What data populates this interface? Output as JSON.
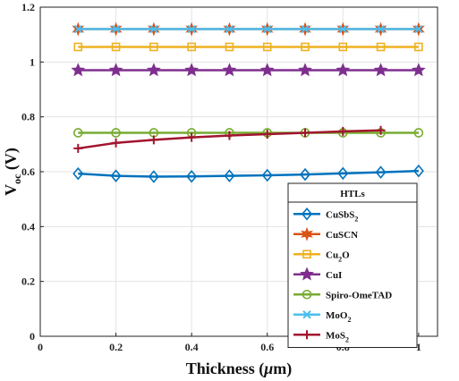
{
  "chart_data": {
    "type": "line",
    "xlabel": "Thickness (μm)",
    "ylabel": "Voc (V)",
    "xlim": [
      0,
      1.05
    ],
    "ylim": [
      0,
      1.2
    ],
    "xticks": [
      "0",
      "0.2",
      "0.4",
      "0.6",
      "0.8",
      "1"
    ],
    "yticks": [
      "0",
      "0.2",
      "0.4",
      "0.6",
      "0.8",
      "1",
      "1.2"
    ],
    "grid": true,
    "legend_title": "HTLs",
    "legend_position": "bottom-right",
    "series": [
      {
        "name": "CuSbS2",
        "label_main": "CuSbS",
        "label_sub": "2",
        "color": "#0072BD",
        "marker": "diamond",
        "x": [
          0.1,
          0.2,
          0.3,
          0.4,
          0.5,
          0.6,
          0.7,
          0.8,
          0.9,
          1.0
        ],
        "values": [
          0.593,
          0.585,
          0.582,
          0.583,
          0.585,
          0.587,
          0.59,
          0.594,
          0.598,
          0.603
        ]
      },
      {
        "name": "CuSCN",
        "label_main": "CuSCN",
        "label_sub": "",
        "color": "#D95319",
        "marker": "hexagram",
        "x": [
          0.1,
          0.2,
          0.3,
          0.4,
          0.5,
          0.6,
          0.7,
          0.8,
          0.9,
          1.0
        ],
        "values": [
          1.12,
          1.12,
          1.12,
          1.12,
          1.12,
          1.12,
          1.12,
          1.12,
          1.12,
          1.12
        ]
      },
      {
        "name": "Cu2O",
        "label_main": "Cu",
        "label_sub": "2",
        "label_tail": "O",
        "color": "#EDB120",
        "marker": "square",
        "x": [
          0.1,
          0.2,
          0.3,
          0.4,
          0.5,
          0.6,
          0.7,
          0.8,
          0.9,
          1.0
        ],
        "values": [
          1.055,
          1.055,
          1.055,
          1.055,
          1.055,
          1.055,
          1.055,
          1.055,
          1.055,
          1.055
        ]
      },
      {
        "name": "CuI",
        "label_main": "CuI",
        "label_sub": "",
        "color": "#7E2F8E",
        "marker": "pentagram",
        "x": [
          0.1,
          0.2,
          0.3,
          0.4,
          0.5,
          0.6,
          0.7,
          0.8,
          0.9,
          1.0
        ],
        "values": [
          0.97,
          0.97,
          0.97,
          0.97,
          0.97,
          0.97,
          0.97,
          0.97,
          0.97,
          0.97
        ]
      },
      {
        "name": "Spiro-OmeTAD",
        "label_main": "Spiro-OmeTAD",
        "label_sub": "",
        "color": "#77AC30",
        "marker": "circle",
        "x": [
          0.1,
          0.2,
          0.3,
          0.4,
          0.5,
          0.6,
          0.7,
          0.8,
          0.9,
          1.0
        ],
        "values": [
          0.742,
          0.742,
          0.742,
          0.742,
          0.742,
          0.742,
          0.742,
          0.742,
          0.742,
          0.742
        ]
      },
      {
        "name": "MoO2",
        "label_main": "MoO",
        "label_sub": "2",
        "color": "#4DBEEE",
        "marker": "x",
        "x": [
          0.1,
          0.2,
          0.3,
          0.4,
          0.5,
          0.6,
          0.7,
          0.8,
          0.9,
          1.0
        ],
        "values": [
          1.12,
          1.12,
          1.12,
          1.12,
          1.12,
          1.12,
          1.12,
          1.12,
          1.12,
          1.12
        ]
      },
      {
        "name": "MoS2",
        "label_main": "MoS",
        "label_sub": "2",
        "color": "#A2142F",
        "marker": "plus",
        "x": [
          0.1,
          0.2,
          0.3,
          0.4,
          0.5,
          0.6,
          0.7,
          0.8,
          0.9
        ],
        "values": [
          0.685,
          0.705,
          0.716,
          0.725,
          0.732,
          0.737,
          0.742,
          0.747,
          0.751
        ]
      }
    ]
  }
}
